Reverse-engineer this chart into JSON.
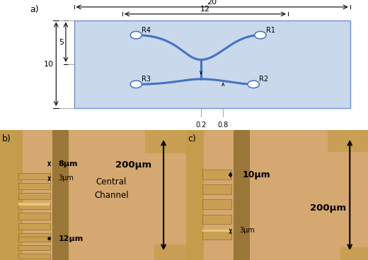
{
  "title_a": "a)",
  "title_b": "b)",
  "title_c": "c)",
  "chip_color": "#b8cce4",
  "chip_edge_color": "#4472c4",
  "channel_color": "#4472c4",
  "bg_color": "#ffffff",
  "dim_20": "20",
  "dim_12": "12",
  "dim_10": "10",
  "dim_5": "5",
  "dim_02": "0.2",
  "dim_08": "0.8",
  "photo_b_labels": [
    "8μm",
    "3μm",
    "12μm",
    "200μm",
    "Central",
    "Channel"
  ],
  "photo_c_labels": [
    "10μm",
    "3μm",
    "200μm"
  ],
  "photo_bg": "#d4a870",
  "photo_dark": "#7a5c10",
  "photo_mid": "#c8a050"
}
